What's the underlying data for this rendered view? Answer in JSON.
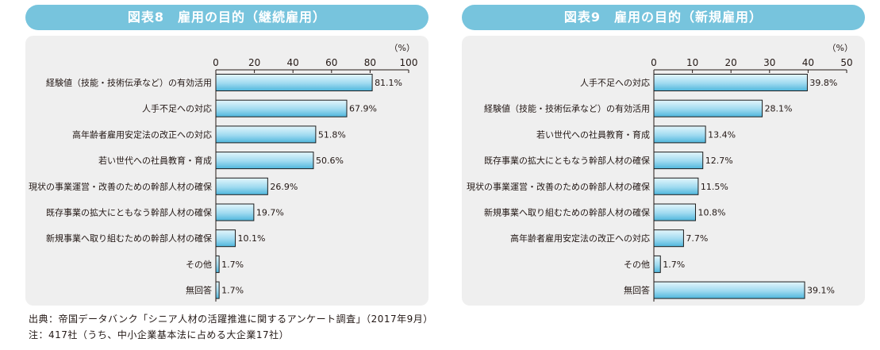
{
  "chart_data": [
    {
      "type": "bar",
      "orientation": "horizontal",
      "title": "図表8　雇用の目的（継続雇用）",
      "unit": "（%）",
      "xlim": [
        0,
        100
      ],
      "ticks": [
        0,
        20,
        40,
        60,
        80,
        100
      ],
      "categories": [
        "経験値（技能・技術伝承など）の有効活用",
        "人手不足への対応",
        "高年齢者雇用安定法の改正への対応",
        "若い世代への社員教育・育成",
        "現状の事業運営・改善のための幹部人材の確保",
        "既存事業の拡大にともなう幹部人材の確保",
        "新規事業へ取り組むための幹部人材の確保",
        "その他",
        "無回答"
      ],
      "values": [
        81.1,
        67.9,
        51.8,
        50.6,
        26.9,
        19.7,
        10.1,
        1.7,
        1.7
      ],
      "value_labels": [
        "81.1%",
        "67.9%",
        "51.8%",
        "50.6%",
        "26.9%",
        "19.7%",
        "10.1%",
        "1.7%",
        "1.7%"
      ]
    },
    {
      "type": "bar",
      "orientation": "horizontal",
      "title": "図表9　雇用の目的（新規雇用）",
      "unit": "（%）",
      "xlim": [
        0,
        50
      ],
      "ticks": [
        0,
        10,
        20,
        30,
        40,
        50
      ],
      "categories": [
        "人手不足への対応",
        "経験値（技能・技術伝承など）の有効活用",
        "若い世代への社員教育・育成",
        "既存事業の拡大にともなう幹部人材の確保",
        "現状の事業運営・改善のための幹部人材の確保",
        "新規事業へ取り組むための幹部人材の確保",
        "高年齢者雇用安定法の改正への対応",
        "その他",
        "無回答"
      ],
      "values": [
        39.8,
        28.1,
        13.4,
        12.7,
        11.5,
        10.8,
        7.7,
        1.7,
        39.1
      ],
      "value_labels": [
        "39.8%",
        "28.1%",
        "13.4%",
        "12.7%",
        "11.5%",
        "10.8%",
        "7.7%",
        "1.7%",
        "39.1%"
      ]
    }
  ],
  "footnotes": {
    "source": "出典：帝国データバンク「シニア人材の活躍推進に関するアンケート調査」（2017年9月）",
    "note": "注：417社（うち、中小企業基本法に占める大企業17社）"
  },
  "colors": {
    "title_bar": "#77c4dd",
    "panel_bg": "#efefef",
    "bar_light": "#e4f6fc",
    "bar_dark": "#4fb6dc",
    "bar_stroke": "#1d1d1d"
  }
}
